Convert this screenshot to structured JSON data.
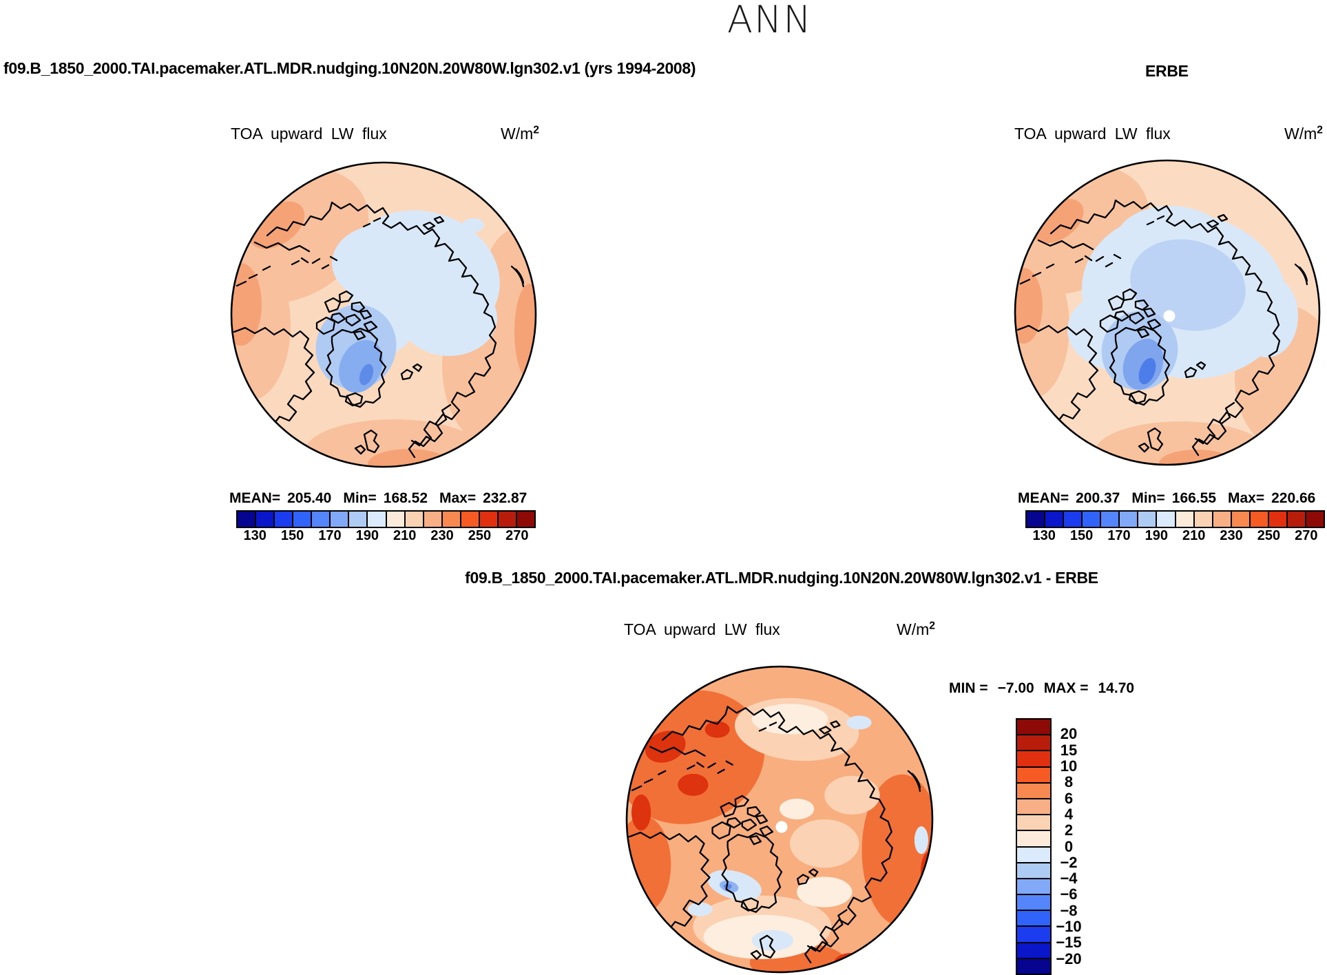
{
  "title": "ANN",
  "header": {
    "case": "f09.B_1850_2000.TAI.pacemaker.ATL.MDR.nudging.10N20N.20W80W.lgn302.v1 (yrs 1994-2008)",
    "obs": "ERBE"
  },
  "diff_header": "f09.B_1850_2000.TAI.pacemaker.ATL.MDR.nudging.10N20N.20W80W.lgn302.v1 - ERBE",
  "field_title": "TOA upward LW flux",
  "units_base": "W/m",
  "units_exp": "2",
  "model_panel": {
    "mean_label": "MEAN=",
    "mean": "205.40",
    "min_label": "Min=",
    "min": "168.52",
    "max_label": "Max=",
    "max": "232.87"
  },
  "obs_panel": {
    "mean_label": "MEAN=",
    "mean": "200.37",
    "min_label": "Min=",
    "min": "166.55",
    "max_label": "Max=",
    "max": "220.66"
  },
  "diff_panel": {
    "min_label": "MIN =",
    "min": "−7.00",
    "max_label": "MAX =",
    "max": "14.70"
  },
  "flux_colorbar": {
    "ticks": [
      "130",
      "150",
      "170",
      "190",
      "210",
      "230",
      "250",
      "270"
    ],
    "palette": [
      "#05058f",
      "#0a16c9",
      "#1c3cf0",
      "#2f63fa",
      "#5585fb",
      "#82a8f8",
      "#aecbf4",
      "#dcebfb",
      "#fcebda",
      "#fad2b4",
      "#f8af85",
      "#f88950",
      "#f55b22",
      "#e03010",
      "#b81c0a",
      "#8e0a06"
    ]
  },
  "diff_colorbar": {
    "ticks": [
      "20",
      "15",
      "10",
      "8",
      "6",
      "4",
      "2",
      "0",
      "−2",
      "−4",
      "−6",
      "−8",
      "−10",
      "−15",
      "−20"
    ],
    "palette": [
      "#8e0a06",
      "#b81c0a",
      "#e03010",
      "#f55b22",
      "#f88950",
      "#f8af85",
      "#fad2b4",
      "#fcebda",
      "#dcebfb",
      "#aecbf4",
      "#82a8f8",
      "#5585fb",
      "#2f63fa",
      "#1c3cf0",
      "#0a16c9",
      "#05058f"
    ]
  },
  "chart_data": [
    {
      "type": "heatmap",
      "projection": "north-polar-stereographic",
      "panel": "model",
      "title": "TOA upward LW flux",
      "units": "W/m2",
      "season": "ANN",
      "dataset_label": "f09.B_1850_2000.TAI.pacemaker.ATL.MDR.nudging.10N20N.20W80W.lgn302.v1 (yrs 1994-2008)",
      "stats": {
        "mean": 205.4,
        "min": 168.52,
        "max": 232.87
      },
      "contour_levels": [
        130,
        140,
        150,
        160,
        170,
        180,
        190,
        200,
        210,
        220,
        230,
        240,
        250,
        260,
        270
      ],
      "legend_position": "below"
    },
    {
      "type": "heatmap",
      "projection": "north-polar-stereographic",
      "panel": "observations",
      "title": "TOA upward LW flux",
      "units": "W/m2",
      "season": "ANN",
      "dataset_label": "ERBE",
      "stats": {
        "mean": 200.37,
        "min": 166.55,
        "max": 220.66
      },
      "contour_levels": [
        130,
        140,
        150,
        160,
        170,
        180,
        190,
        200,
        210,
        220,
        230,
        240,
        250,
        260,
        270
      ],
      "legend_position": "below"
    },
    {
      "type": "heatmap",
      "projection": "north-polar-stereographic",
      "panel": "difference (model - ERBE)",
      "title": "TOA upward LW flux",
      "units": "W/m2",
      "season": "ANN",
      "dataset_label": "f09.B_1850_2000.TAI.pacemaker.ATL.MDR.nudging.10N20N.20W80W.lgn302.v1 - ERBE",
      "stats": {
        "min": -7.0,
        "max": 14.7
      },
      "contour_levels": [
        -20,
        -15,
        -10,
        -8,
        -6,
        -4,
        -2,
        0,
        2,
        4,
        6,
        8,
        10,
        15,
        20
      ],
      "legend_position": "right"
    }
  ]
}
